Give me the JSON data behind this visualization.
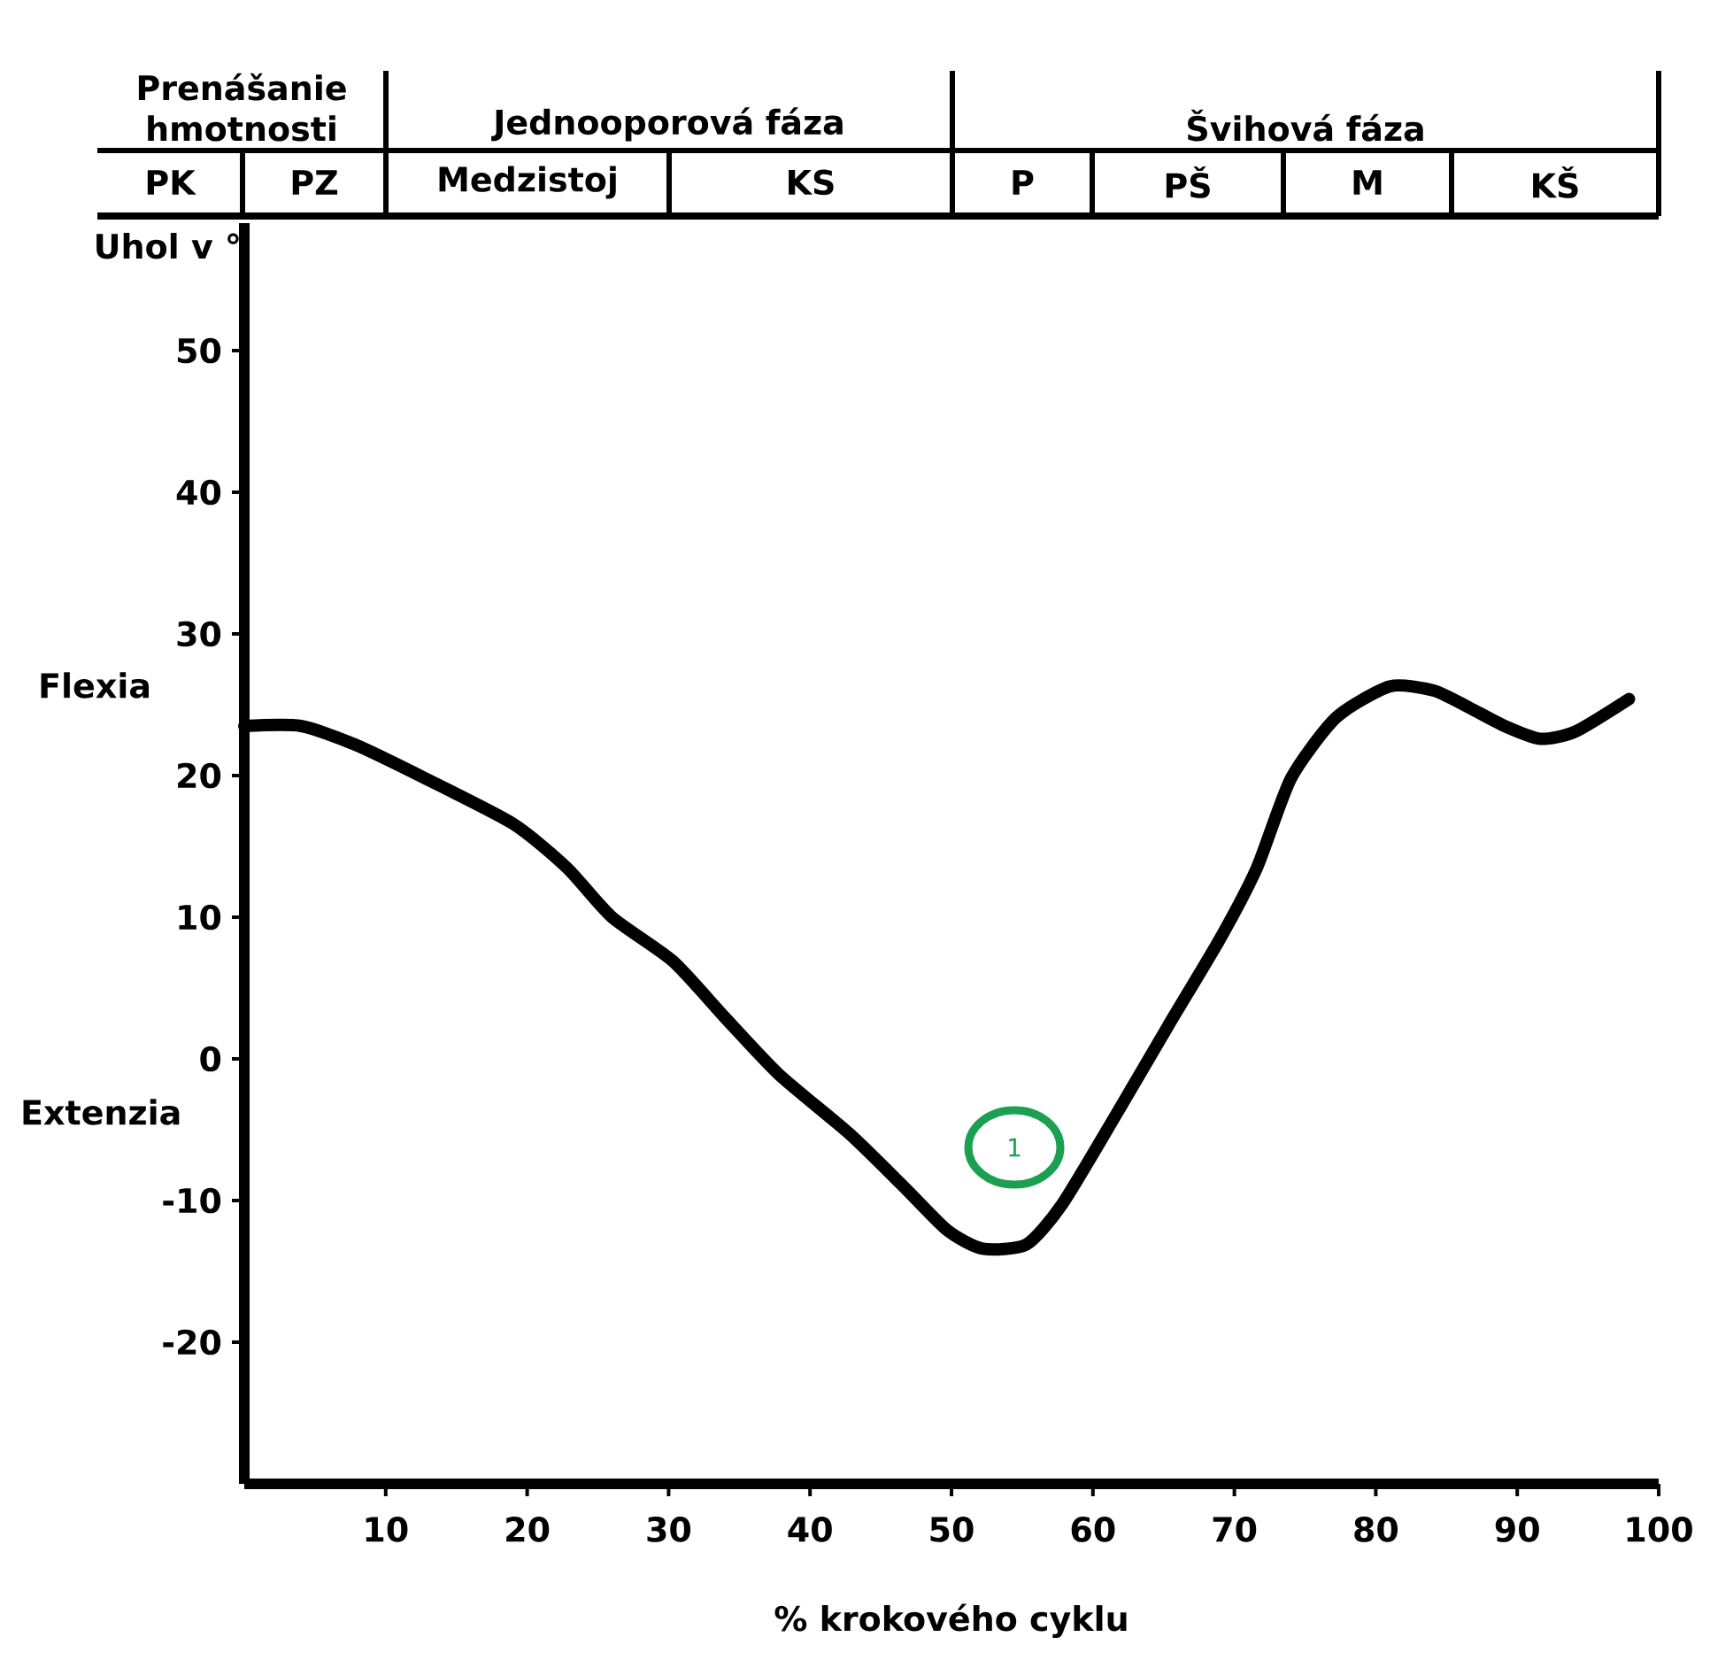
{
  "chart_data": {
    "type": "line",
    "xlabel": "% krokového cyklu",
    "ylabel": "Uhol v °",
    "xlim": [
      0,
      100
    ],
    "ylim": [
      -30,
      59
    ],
    "xticks": [
      10,
      20,
      30,
      40,
      50,
      60,
      70,
      80,
      90,
      100
    ],
    "yticks": [
      -20,
      -10,
      0,
      10,
      20,
      30,
      40,
      50
    ],
    "grid": false,
    "marker": "none",
    "line_style": "solid",
    "series": [
      {
        "color": "#000000",
        "x": [
          0,
          4,
          7.8,
          12.8,
          19,
          22.8,
          26,
          30.3,
          34,
          37.8,
          42.8,
          46.6,
          49.7,
          52.2,
          55.3,
          57.8,
          61.6,
          65.3,
          69,
          71.6,
          74,
          77.2,
          81,
          84.1,
          86.6,
          89.1,
          91.6,
          94.1,
          97.9
        ],
        "values": [
          23.5,
          23.5,
          22.2,
          19.8,
          16.6,
          13.5,
          10,
          6.9,
          2.9,
          -1.1,
          -5.3,
          -9,
          -12.1,
          -13.4,
          -13.1,
          -10.3,
          -4,
          2.3,
          8.5,
          13.5,
          19.8,
          24.1,
          26.3,
          26,
          24.8,
          23.5,
          22.6,
          23.1,
          25.4
        ]
      }
    ],
    "annotations": [
      "Prenášanie hmotnosti",
      "Jednooporová fáza",
      "Švihová fáza",
      "PK",
      "PZ",
      "Medzistoj",
      "KS",
      "P",
      "PŠ",
      "M",
      "KŠ",
      "Flexia",
      "Extenzia",
      "1"
    ]
  }
}
